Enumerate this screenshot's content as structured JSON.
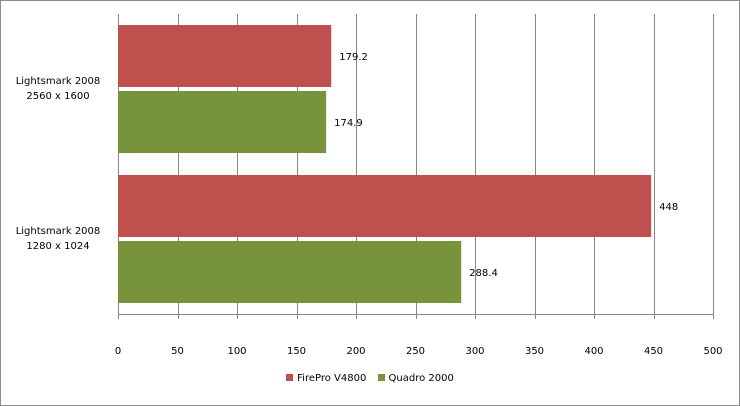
{
  "chart_data": {
    "type": "bar",
    "orientation": "horizontal",
    "categories": [
      "Lightsmark 2008\n2560 x 1600",
      "Lightsmark 2008\n1280 x 1024"
    ],
    "series": [
      {
        "name": "FirePro V4800",
        "color": "#c0504d",
        "values": [
          179.2,
          448
        ]
      },
      {
        "name": "Quadro 2000",
        "color": "#77933c",
        "values": [
          174.9,
          288.4
        ]
      }
    ],
    "data_labels": [
      [
        "179.2",
        "448"
      ],
      [
        "174.9",
        "288.4"
      ]
    ],
    "xlim": [
      0,
      500
    ],
    "xticks": [
      0,
      50,
      100,
      150,
      200,
      250,
      300,
      350,
      400,
      450,
      500
    ],
    "grid": true,
    "legend_position": "bottom",
    "title": "",
    "xlabel": "",
    "ylabel": ""
  }
}
